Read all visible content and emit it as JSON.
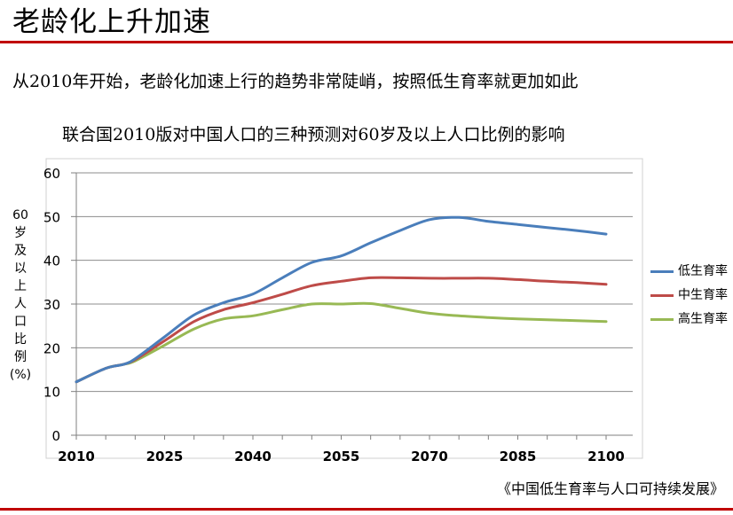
{
  "slide": {
    "title": "老龄化上升加速",
    "subtitle": "从2010年开始，老龄化加速上行的趋势非常陡峭，按照低生育率就更加如此",
    "source": "《中国低生育率与人口可持续发展》",
    "accent_color": "#c00000"
  },
  "chart_data": {
    "type": "line",
    "title": "联合国2010版对中国人口的三种预测对60岁及以上人口比例的影响",
    "ylabel_chars": [
      "60",
      "岁",
      "及",
      "以",
      "上",
      "人",
      "口",
      "比",
      "例",
      "(%)"
    ],
    "xlabel": "",
    "xlim": [
      2010,
      2100
    ],
    "ylim": [
      0,
      60
    ],
    "x_ticks": [
      2010,
      2025,
      2040,
      2055,
      2070,
      2085,
      2100
    ],
    "y_ticks": [
      0,
      10,
      20,
      30,
      40,
      50,
      60
    ],
    "grid": "horizontal",
    "legend_position": "right",
    "x": [
      2010,
      2015,
      2018,
      2020,
      2025,
      2030,
      2035,
      2040,
      2045,
      2050,
      2055,
      2060,
      2065,
      2070,
      2075,
      2080,
      2085,
      2090,
      2095,
      2100
    ],
    "series": [
      {
        "name": "低生育率",
        "color": "#4a7ebb",
        "values": [
          12.2,
          15.3,
          16.2,
          17.5,
          22.5,
          27.5,
          30.3,
          32.3,
          36.0,
          39.5,
          41.0,
          44.0,
          46.8,
          49.3,
          49.8,
          48.9,
          48.2,
          47.5,
          46.8,
          46.0
        ]
      },
      {
        "name": "中生育率",
        "color": "#be4b48",
        "values": [
          12.2,
          15.3,
          16.2,
          17.3,
          21.6,
          26.0,
          28.7,
          30.3,
          32.2,
          34.2,
          35.2,
          36.0,
          36.0,
          35.9,
          35.9,
          35.9,
          35.6,
          35.2,
          34.9,
          34.5
        ]
      },
      {
        "name": "高生育率",
        "color": "#98b954",
        "values": [
          12.2,
          15.3,
          16.2,
          17.0,
          20.6,
          24.3,
          26.6,
          27.3,
          28.7,
          30.0,
          30.0,
          30.1,
          29.0,
          27.9,
          27.3,
          26.9,
          26.6,
          26.4,
          26.2,
          26.0
        ]
      }
    ]
  }
}
